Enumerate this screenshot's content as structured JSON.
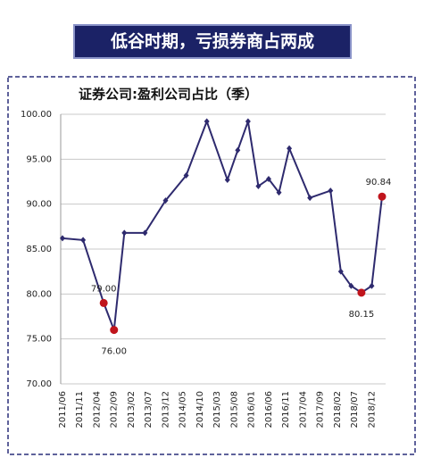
{
  "header": {
    "title": "低谷时期，亏损券商占两成"
  },
  "chart_data": {
    "type": "line",
    "title": "证券公司:盈利公司占比（季）",
    "x": [
      "2011/06",
      "2011/12",
      "2012/06",
      "2012/09",
      "2012/12",
      "2013/06",
      "2013/12",
      "2014/06",
      "2014/12",
      "2015/06",
      "2015/09",
      "2015/12",
      "2016/03",
      "2016/06",
      "2016/09",
      "2016/12",
      "2017/06",
      "2017/12",
      "2018/03",
      "2018/06",
      "2018/09",
      "2018/12",
      "2019/03"
    ],
    "series": [
      {
        "color": "#2e2a6e",
        "highlight_color": "#c0141c",
        "values": [
          86.2,
          86.0,
          79.0,
          76.0,
          86.8,
          86.8,
          90.4,
          93.2,
          99.2,
          92.7,
          96.0,
          99.2,
          92.0,
          92.8,
          91.3,
          96.2,
          90.7,
          91.5,
          82.5,
          80.9,
          80.15,
          80.9,
          90.84
        ],
        "value_labels": [
          null,
          null,
          "79.00",
          "76.00",
          null,
          null,
          null,
          null,
          null,
          null,
          null,
          null,
          null,
          null,
          null,
          null,
          null,
          null,
          null,
          null,
          "80.15",
          null,
          "90.84"
        ]
      }
    ],
    "xlim": [
      "2011/06",
      "2019/03"
    ],
    "xticks": [
      "2011/06",
      "2011/11",
      "2012/04",
      "2012/09",
      "2013/02",
      "2013/07",
      "2013/12",
      "2014/05",
      "2014/10",
      "2015/03",
      "2015/08",
      "2016/01",
      "2016/06",
      "2016/11",
      "2017/04",
      "2017/09",
      "2018/02",
      "2018/07",
      "2018/12"
    ],
    "ylim": [
      70,
      100
    ],
    "yticks": [
      {
        "value": 70,
        "label": "70.00"
      },
      {
        "value": 75,
        "label": "75.00"
      },
      {
        "value": 80,
        "label": "80.00"
      },
      {
        "value": 85,
        "label": "85.00"
      },
      {
        "value": 90,
        "label": "90.00"
      },
      {
        "value": 95,
        "label": "95.00"
      },
      {
        "value": 100,
        "label": "100.00"
      }
    ],
    "grid": true
  }
}
